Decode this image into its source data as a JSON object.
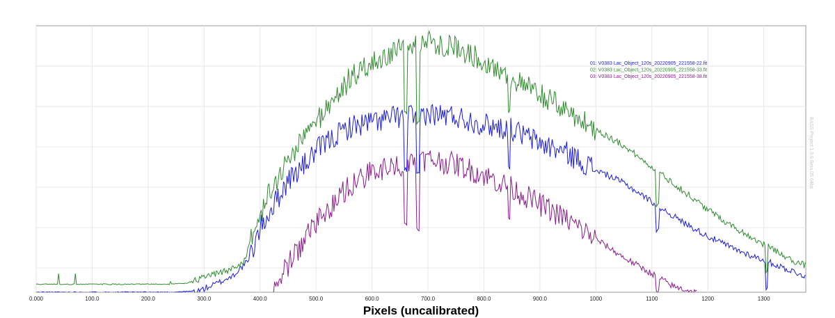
{
  "chart_data": {
    "type": "line",
    "title": "",
    "xlabel": "Pixels (uncalibrated)",
    "ylabel": "",
    "xlim": [
      0,
      1375
    ],
    "ylim": [
      0,
      1
    ],
    "grid": true,
    "legend_position": "top-right",
    "watermark": "BASS Project 1.9.9 Beta 05 64bit",
    "x_ticks": [
      "0.000",
      "100.0",
      "200.0",
      "300.0",
      "400.0",
      "500.0",
      "600.0",
      "700.0",
      "800.0",
      "900.0",
      "1000",
      "1100",
      "1200",
      "1300"
    ],
    "x_tick_values": [
      0,
      100,
      200,
      300,
      400,
      500,
      600,
      700,
      800,
      900,
      1000,
      1100,
      1200,
      1300
    ],
    "colors": {
      "series1": "#1a1ae6",
      "series2": "#2e8b2e",
      "series3": "#8b1a8b"
    },
    "series": [
      {
        "name": "01: V0383 Lac_Object_120s_20220905_221558-22.fit",
        "color": "#1a1ae6",
        "points": [
          [
            0,
            0.0
          ],
          [
            240,
            0.0
          ],
          [
            290,
            0.005
          ],
          [
            320,
            0.03
          ],
          [
            350,
            0.06
          ],
          [
            380,
            0.12
          ],
          [
            400,
            0.24
          ],
          [
            425,
            0.33
          ],
          [
            450,
            0.42
          ],
          [
            480,
            0.48
          ],
          [
            500,
            0.53
          ],
          [
            530,
            0.58
          ],
          [
            560,
            0.62
          ],
          [
            600,
            0.64
          ],
          [
            650,
            0.66
          ],
          [
            700,
            0.67
          ],
          [
            750,
            0.66
          ],
          [
            800,
            0.63
          ],
          [
            850,
            0.61
          ],
          [
            900,
            0.56
          ],
          [
            950,
            0.52
          ],
          [
            1000,
            0.46
          ],
          [
            1050,
            0.41
          ],
          [
            1100,
            0.34
          ],
          [
            1150,
            0.27
          ],
          [
            1200,
            0.21
          ],
          [
            1250,
            0.16
          ],
          [
            1300,
            0.12
          ],
          [
            1350,
            0.08
          ],
          [
            1375,
            0.06
          ]
        ],
        "dips": [
          [
            660,
            0.46
          ],
          [
            682,
            0.44
          ],
          [
            845,
            0.47
          ],
          [
            1110,
            0.23
          ],
          [
            1305,
            0.01
          ]
        ]
      },
      {
        "name": "02: V0383 Lac_Object_120s_20220905_221558-33.fit",
        "color": "#2e8b2e",
        "points": [
          [
            0,
            0.03
          ],
          [
            240,
            0.03
          ],
          [
            270,
            0.035
          ],
          [
            300,
            0.055
          ],
          [
            340,
            0.08
          ],
          [
            370,
            0.11
          ],
          [
            390,
            0.23
          ],
          [
            410,
            0.34
          ],
          [
            440,
            0.46
          ],
          [
            470,
            0.56
          ],
          [
            500,
            0.64
          ],
          [
            530,
            0.72
          ],
          [
            560,
            0.8
          ],
          [
            600,
            0.86
          ],
          [
            650,
            0.91
          ],
          [
            700,
            0.94
          ],
          [
            750,
            0.92
          ],
          [
            800,
            0.87
          ],
          [
            850,
            0.8
          ],
          [
            900,
            0.74
          ],
          [
            950,
            0.68
          ],
          [
            1000,
            0.61
          ],
          [
            1050,
            0.55
          ],
          [
            1100,
            0.47
          ],
          [
            1150,
            0.39
          ],
          [
            1200,
            0.31
          ],
          [
            1250,
            0.24
          ],
          [
            1300,
            0.18
          ],
          [
            1350,
            0.12
          ],
          [
            1375,
            0.1
          ]
        ],
        "spikes": [
          [
            40,
            0.07
          ],
          [
            70,
            0.07
          ],
          [
            240,
            0.04
          ]
        ],
        "dips": [
          [
            660,
            0.67
          ],
          [
            682,
            0.64
          ],
          [
            845,
            0.68
          ],
          [
            1110,
            0.33
          ],
          [
            1305,
            0.08
          ]
        ]
      },
      {
        "name": "03: V0383 Lac_Object_120s_20220905_221558-38.fit",
        "color": "#8b1a8b",
        "points": [
          [
            420,
            0.0
          ],
          [
            440,
            0.07
          ],
          [
            470,
            0.17
          ],
          [
            500,
            0.26
          ],
          [
            530,
            0.33
          ],
          [
            560,
            0.4
          ],
          [
            600,
            0.45
          ],
          [
            650,
            0.48
          ],
          [
            700,
            0.5
          ],
          [
            750,
            0.48
          ],
          [
            800,
            0.44
          ],
          [
            850,
            0.39
          ],
          [
            900,
            0.33
          ],
          [
            950,
            0.27
          ],
          [
            1000,
            0.2
          ],
          [
            1050,
            0.13
          ],
          [
            1100,
            0.07
          ],
          [
            1140,
            0.02
          ],
          [
            1180,
            0.0
          ]
        ],
        "dips": [
          [
            660,
            0.26
          ],
          [
            682,
            0.24
          ],
          [
            845,
            0.28
          ],
          [
            1110,
            0.0
          ]
        ]
      }
    ]
  }
}
